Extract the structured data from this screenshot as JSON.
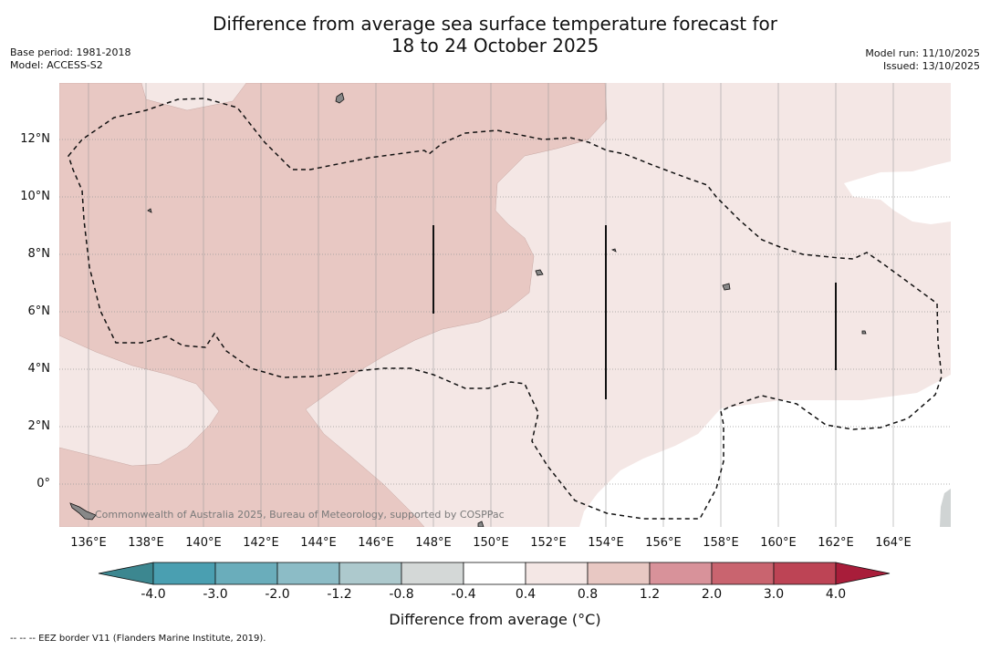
{
  "header": {
    "title_line1": "Difference from average sea surface temperature forecast for",
    "title_line2": "18 to 24 October 2025",
    "base_period": "Base period: 1981-2018",
    "model": "Model: ACCESS-S2",
    "model_run": "Model run: 11/10/2025",
    "issued": "Issued: 13/10/2025"
  },
  "map": {
    "lon_labels": [
      "136°E",
      "138°E",
      "140°E",
      "142°E",
      "144°E",
      "146°E",
      "148°E",
      "150°E",
      "152°E",
      "154°E",
      "156°E",
      "158°E",
      "160°E",
      "162°E",
      "164°E"
    ],
    "lat_labels": [
      "12°N",
      "10°N",
      "8°N",
      "6°N",
      "4°N",
      "2°N",
      "0°"
    ],
    "copyright": "Commonwealth of Australia 2025, Bureau of Meteorology, supported by COSPPac"
  },
  "colorbar": {
    "title": "Difference from average (°C)",
    "tick_labels": [
      "-4.0",
      "-3.0",
      "-2.0",
      "-1.2",
      "-0.8",
      "-0.4",
      "0.4",
      "0.8",
      "1.2",
      "2.0",
      "3.0",
      "4.0"
    ],
    "colors": [
      "#4a9fb1",
      "#6aadbb",
      "#8cbcc6",
      "#adc9cd",
      "#d4d8d7",
      "#ffffff",
      "#f4e7e5",
      "#e8c8c3",
      "#d8929a",
      "#c9646f",
      "#bd4455"
    ],
    "under_color": "#3c8790",
    "over_color": "#a81d3a"
  },
  "legend": {
    "eez_note": "--  --  -- EEZ border V11 (Flanders Marine Institute, 2019)."
  }
}
